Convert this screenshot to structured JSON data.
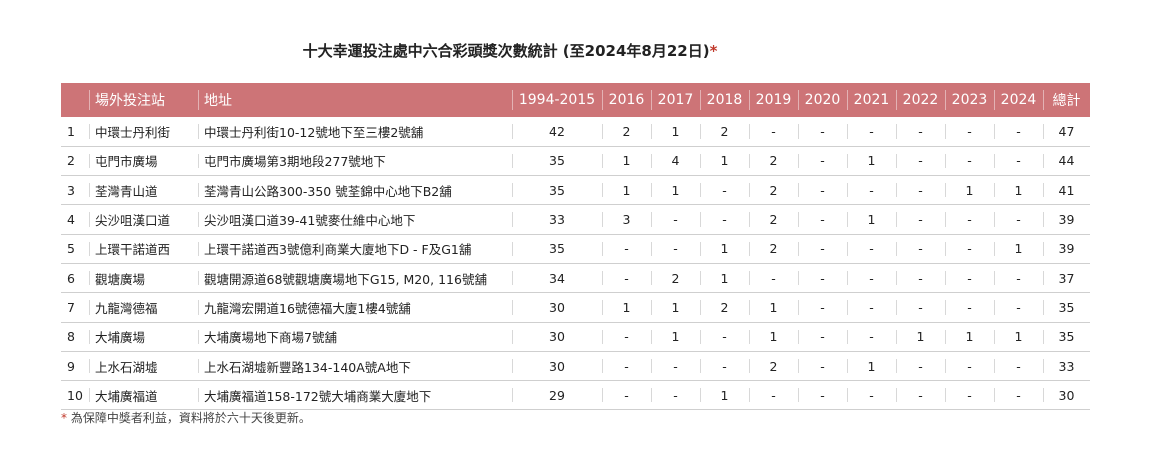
{
  "title": "十大幸運投注處中六合彩頭獎次數統計 (至2024年8月22日)",
  "title_mark": "*",
  "headers": {
    "rank": "",
    "station": "場外投注站",
    "address": "地址",
    "years": [
      "1994-2015",
      "2016",
      "2017",
      "2018",
      "2019",
      "2020",
      "2021",
      "2022",
      "2023",
      "2024"
    ],
    "total": "總計"
  },
  "rows": [
    {
      "rank": "1",
      "station": "中環士丹利街",
      "address": "中環士丹利街10-12號地下至三樓2號舖",
      "counts": [
        "42",
        "2",
        "1",
        "2",
        "-",
        "-",
        "-",
        "-",
        "-",
        "-"
      ],
      "total": "47"
    },
    {
      "rank": "2",
      "station": "屯門市廣場",
      "address": "屯門市廣場第3期地段277號地下",
      "counts": [
        "35",
        "1",
        "4",
        "1",
        "2",
        "-",
        "1",
        "-",
        "-",
        "-"
      ],
      "total": "44"
    },
    {
      "rank": "3",
      "station": "荃灣青山道",
      "address": "荃灣青山公路300-350 號荃錦中心地下B2舖",
      "counts": [
        "35",
        "1",
        "1",
        "-",
        "2",
        "-",
        "-",
        "-",
        "1",
        "1"
      ],
      "total": "41"
    },
    {
      "rank": "4",
      "station": "尖沙咀漢口道",
      "address": "尖沙咀漢口道39-41號麥仕維中心地下",
      "counts": [
        "33",
        "3",
        "-",
        "-",
        "2",
        "-",
        "1",
        "-",
        "-",
        "-"
      ],
      "total": "39"
    },
    {
      "rank": "5",
      "station": "上環干諾道西",
      "address": "上環干諾道西3號億利商業大廈地下D - F及G1舖",
      "counts": [
        "35",
        "-",
        "-",
        "1",
        "2",
        "-",
        "-",
        "-",
        "-",
        "1"
      ],
      "total": "39"
    },
    {
      "rank": "6",
      "station": "觀塘廣場",
      "address": "觀塘開源道68號觀塘廣場地下G15, M20, 116號舖",
      "counts": [
        "34",
        "-",
        "2",
        "1",
        "-",
        "-",
        "-",
        "-",
        "-",
        "-"
      ],
      "total": "37"
    },
    {
      "rank": "7",
      "station": "九龍灣德福",
      "address": "九龍灣宏開道16號德福大廈1樓4號舖",
      "counts": [
        "30",
        "1",
        "1",
        "2",
        "1",
        "-",
        "-",
        "-",
        "-",
        "-"
      ],
      "total": "35"
    },
    {
      "rank": "8",
      "station": "大埔廣場",
      "address": "大埔廣場地下商場7號舖",
      "counts": [
        "30",
        "-",
        "1",
        "-",
        "1",
        "-",
        "-",
        "1",
        "1",
        "1"
      ],
      "total": "35"
    },
    {
      "rank": "9",
      "station": "上水石湖墟",
      "address": "上水石湖墟新豐路134-140A號A地下",
      "counts": [
        "30",
        "-",
        "-",
        "-",
        "2",
        "-",
        "1",
        "-",
        "-",
        "-"
      ],
      "total": "33"
    },
    {
      "rank": "10",
      "station": "大埔廣福道",
      "address": "大埔廣福道158-172號大埔商業大廈地下",
      "counts": [
        "29",
        "-",
        "-",
        "1",
        "-",
        "-",
        "-",
        "-",
        "-",
        "-"
      ],
      "total": "30"
    }
  ],
  "footnote_mark": "*",
  "footnote": " 為保障中獎者利益，資料將於六十天後更新。"
}
